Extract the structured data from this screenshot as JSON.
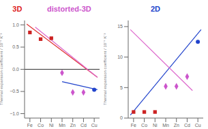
{
  "chart_data": [
    {
      "type": "scatter",
      "y_label": "Thermal expansion coefficient / 10⁻⁵ K⁻¹",
      "xlim": [
        -0.5,
        6.5
      ],
      "xticks": [
        {
          "value": 0,
          "label": "Fe"
        },
        {
          "value": 1,
          "label": "Co"
        },
        {
          "value": 2,
          "label": "Ni"
        },
        {
          "value": 3,
          "label": "Mn"
        },
        {
          "value": 4,
          "label": "Zn"
        },
        {
          "value": 5,
          "label": "Cd"
        },
        {
          "value": 6,
          "label": "Cu"
        }
      ],
      "ylim": [
        -1.1,
        1.1
      ],
      "yticks": [
        {
          "value": -1.0,
          "label": "−1.0"
        },
        {
          "value": -0.5,
          "label": "−0.5"
        },
        {
          "value": 0.0,
          "label": "0.0"
        },
        {
          "value": 0.5,
          "label": "0.5"
        },
        {
          "value": 1.0,
          "label": "1.0"
        }
      ],
      "grid": false,
      "series": [
        {
          "type": "line",
          "color": "#e03030",
          "x": [
            -0.3,
            6.3
          ],
          "values": [
            1.02,
            -0.18
          ]
        },
        {
          "type": "line",
          "color": "#2244cc",
          "x": [
            3.0,
            6.3
          ],
          "values": [
            -0.28,
            -0.46
          ]
        },
        {
          "type": "line",
          "color": "#dd66cc",
          "x": [
            0.5,
            6.3
          ],
          "values": [
            0.95,
            -0.18
          ]
        },
        {
          "type": "scatter",
          "marker": "square",
          "color": "#cc2222",
          "x": [
            0,
            1,
            2
          ],
          "values": [
            0.83,
            0.68,
            0.7
          ]
        },
        {
          "type": "scatter",
          "marker": "diamond",
          "color": "#cc55cc",
          "x": [
            3,
            4,
            5
          ],
          "values": [
            -0.08,
            -0.52,
            -0.52
          ]
        },
        {
          "type": "scatter",
          "marker": "circle",
          "color": "#2244cc",
          "x": [
            6
          ],
          "values": [
            -0.46
          ]
        }
      ],
      "annotations": [
        {
          "text": "3D",
          "color": "#dd2222"
        },
        {
          "text": "distorted-3D",
          "color": "#cc55cc"
        },
        {
          "y": 0,
          "color": "#333333"
        }
      ]
    },
    {
      "type": "scatter",
      "y_label": "Thermal expansion coefficient / 10⁻⁵ K⁻¹",
      "xlim": [
        -0.5,
        6.5
      ],
      "xticks": [
        {
          "value": 0,
          "label": "Fe"
        },
        {
          "value": 1,
          "label": "Co"
        },
        {
          "value": 2,
          "label": "Ni"
        },
        {
          "value": 3,
          "label": "Mn"
        },
        {
          "value": 4,
          "label": "Zn"
        },
        {
          "value": 5,
          "label": "Cd"
        },
        {
          "value": 6,
          "label": "Cu"
        }
      ],
      "ylim": [
        0,
        16
      ],
      "yticks": [
        0,
        5,
        10,
        15
      ],
      "grid": false,
      "series": [
        {
          "type": "line",
          "color": "#2244cc",
          "x": [
            -0.3,
            6.3
          ],
          "values": [
            0.5,
            14.5
          ]
        },
        {
          "type": "line",
          "color": "#dd66cc",
          "x": [
            -0.3,
            5.5
          ],
          "values": [
            14.5,
            4.5
          ]
        },
        {
          "type": "scatter",
          "marker": "square",
          "color": "#cc2222",
          "x": [
            0,
            1,
            2
          ],
          "values": [
            1.0,
            1.0,
            1.0
          ]
        },
        {
          "type": "scatter",
          "marker": "diamond",
          "color": "#cc55cc",
          "x": [
            3,
            4,
            5
          ],
          "values": [
            5.2,
            5.2,
            6.8
          ]
        },
        {
          "type": "scatter",
          "marker": "circle",
          "color": "#2244cc",
          "x": [
            6
          ],
          "values": [
            12.5
          ]
        }
      ],
      "annotations": [
        {
          "text": "2D",
          "color": "#2244cc"
        }
      ]
    }
  ]
}
